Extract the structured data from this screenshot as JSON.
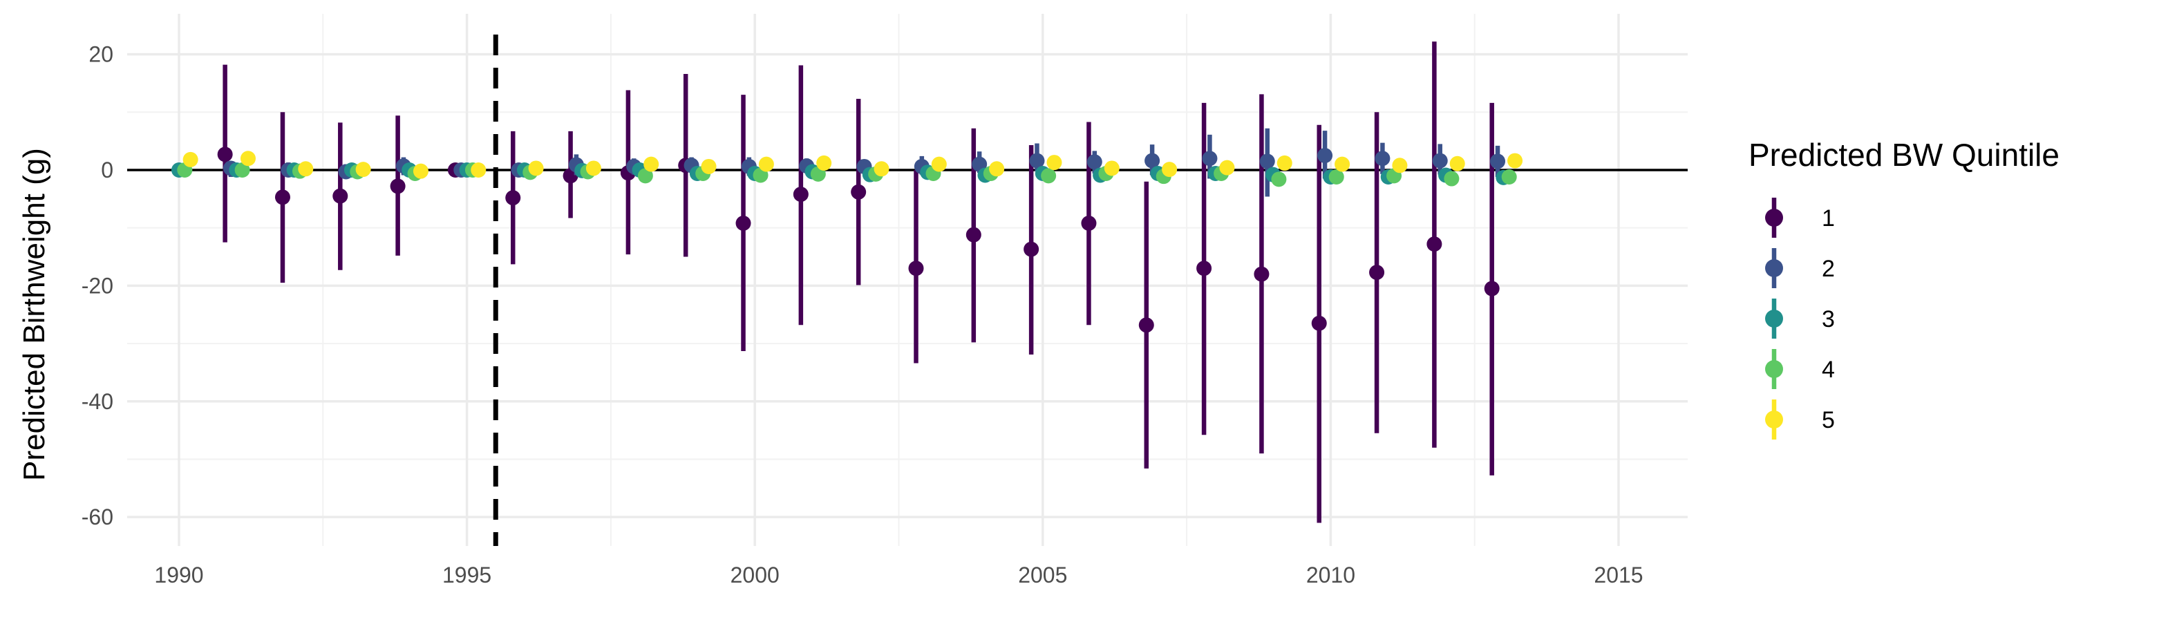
{
  "chart_data": {
    "type": "scatter",
    "subtype": "pointrange",
    "title": "",
    "xlabel": "",
    "ylabel": "Predicted Birthweight (g)",
    "xlim": [
      1989.1,
      2016.2
    ],
    "ylim": [
      -65,
      27
    ],
    "x_ticks": [
      1990,
      1995,
      2000,
      2005,
      2010,
      2015
    ],
    "x_tick_labels": [
      "1990",
      "1995",
      "2000",
      "2005",
      "2010",
      "2015"
    ],
    "y_ticks": [
      20,
      0,
      -20,
      -40,
      -60
    ],
    "y_tick_labels": [
      "20",
      "0",
      "-20",
      "-40",
      "-60"
    ],
    "grid": true,
    "reference_hline": 0,
    "reference_vline": 1995.5,
    "legend": {
      "title": "Predicted BW Quintile",
      "position": "right"
    },
    "dodge_width": 0.5,
    "series": [
      {
        "name": "1",
        "color": "#440154",
        "x": [
          1991,
          1992,
          1993,
          1994,
          1995,
          1996,
          1997,
          1998,
          1999,
          2000,
          2001,
          2002,
          2003,
          2004,
          2005,
          2006,
          2007,
          2008,
          2009,
          2010,
          2011,
          2012,
          2013
        ],
        "y": [
          2.7,
          -4.7,
          -4.5,
          -2.8,
          0,
          -4.8,
          -1,
          -0.5,
          0.8,
          -9.2,
          -4.2,
          -3.8,
          -17,
          -11.2,
          -13.7,
          -9.2,
          -26.8,
          -17,
          -18,
          -26.5,
          -17.7,
          -12.8,
          -20.5
        ],
        "lower": [
          -12.5,
          -19.5,
          -17.3,
          -14.8,
          0,
          -16.3,
          -8.3,
          -14.6,
          -15,
          -31.3,
          -26.8,
          -19.9,
          -33.4,
          -29.8,
          -31.9,
          -26.8,
          -51.6,
          -45.8,
          -49,
          -61,
          -45.5,
          -48,
          -52.8
        ],
        "upper": [
          18.2,
          10,
          8.2,
          9.4,
          0,
          6.7,
          6.7,
          13.8,
          16.6,
          13,
          18.1,
          12.3,
          0,
          7.2,
          4.3,
          8.3,
          -2,
          11.6,
          13.1,
          7.8,
          10,
          22.2,
          11.6
        ]
      },
      {
        "name": "2",
        "color": "#3B528B",
        "x": [
          1991,
          1992,
          1993,
          1994,
          1995,
          1996,
          1997,
          1998,
          1999,
          2000,
          2001,
          2002,
          2003,
          2004,
          2005,
          2006,
          2007,
          2008,
          2009,
          2010,
          2011,
          2012,
          2013
        ],
        "y": [
          0.3,
          0,
          -0.3,
          0.7,
          0,
          0,
          0.9,
          0.6,
          0.8,
          0.6,
          0.7,
          0.6,
          0.6,
          1,
          1.6,
          1.4,
          1.6,
          2,
          1.5,
          2.5,
          2,
          1.6,
          1.5
        ],
        "lower": [
          -1.2,
          -1.2,
          -1.2,
          -0.9,
          0,
          -1,
          -0.9,
          -0.8,
          -0.5,
          -1,
          -0.5,
          -0.6,
          -0.8,
          -0.5,
          -0.2,
          -0.6,
          -0.9,
          -1.5,
          -4.6,
          -1.5,
          -0.7,
          -0.8,
          -1.2
        ],
        "upper": [
          1.5,
          1.3,
          1,
          2.2,
          0,
          1.1,
          2.7,
          2,
          2.2,
          2.2,
          2,
          1.8,
          2.4,
          3.2,
          4.6,
          3.3,
          4.4,
          6.1,
          7.2,
          6.8,
          4.7,
          4.5,
          4.2
        ]
      },
      {
        "name": "3",
        "color": "#21908C",
        "x": [
          1990,
          1991,
          1992,
          1993,
          1994,
          1995,
          1996,
          1997,
          1998,
          1999,
          2000,
          2001,
          2002,
          2003,
          2004,
          2005,
          2006,
          2007,
          2008,
          2009,
          2010,
          2011,
          2012,
          2013
        ],
        "y": [
          0,
          0,
          0,
          0,
          0,
          0,
          0,
          -0.1,
          0,
          -0.6,
          -0.6,
          -0.3,
          -0.8,
          -0.4,
          -0.9,
          -0.6,
          -0.9,
          -0.6,
          -0.6,
          -0.8,
          -1.2,
          -1.2,
          -0.9,
          -1.3
        ],
        "lower": [
          -0.6,
          -0.6,
          -0.6,
          -0.6,
          -0.6,
          -0.6,
          -0.6,
          -0.8,
          -0.6,
          -1.3,
          -1.4,
          -1,
          -1.5,
          -1.1,
          -1.7,
          -1.4,
          -1.7,
          -1.4,
          -1.4,
          -1.6,
          -2,
          -2,
          -1.7,
          -2.1
        ],
        "upper": [
          0.6,
          0.6,
          0.6,
          0.6,
          0.6,
          0.6,
          0.6,
          0.6,
          0.6,
          0.1,
          0.2,
          0.4,
          -0.1,
          0.3,
          -0.1,
          0.2,
          -0.1,
          0.2,
          0.2,
          0,
          -0.4,
          -0.4,
          -0.1,
          -0.5
        ]
      },
      {
        "name": "4",
        "color": "#5DC863",
        "x": [
          1990,
          1991,
          1992,
          1993,
          1994,
          1995,
          1996,
          1997,
          1998,
          1999,
          2000,
          2001,
          2002,
          2003,
          2004,
          2005,
          2006,
          2007,
          2008,
          2009,
          2010,
          2011,
          2012,
          2013
        ],
        "y": [
          0,
          0,
          -0.2,
          -0.3,
          -0.6,
          0,
          -0.4,
          -0.3,
          -1,
          -0.6,
          -0.9,
          -0.7,
          -0.7,
          -0.6,
          -0.6,
          -1,
          -0.6,
          -1.1,
          -0.6,
          -1.6,
          -1.2,
          -1,
          -1.5,
          -1.2
        ],
        "lower": [
          -0.6,
          -0.6,
          -0.8,
          -0.9,
          -1.2,
          -0.6,
          -1,
          -0.9,
          -1.6,
          -1.3,
          -1.6,
          -1.4,
          -1.4,
          -1.3,
          -1.3,
          -1.8,
          -1.3,
          -1.8,
          -1.3,
          -2.4,
          -1.9,
          -1.7,
          -2.3,
          -1.9
        ],
        "upper": [
          0.6,
          0.6,
          0.4,
          0.3,
          0,
          0.6,
          0.2,
          0.3,
          -0.4,
          0.1,
          -0.2,
          0,
          0,
          0.1,
          0.1,
          -0.2,
          0.1,
          -0.4,
          0.1,
          -0.8,
          -0.5,
          -0.3,
          -0.7,
          -0.5
        ]
      },
      {
        "name": "5",
        "color": "#FDE725",
        "x": [
          1990,
          1991,
          1992,
          1993,
          1994,
          1995,
          1996,
          1997,
          1998,
          1999,
          2000,
          2001,
          2002,
          2003,
          2004,
          2005,
          2006,
          2007,
          2008,
          2009,
          2010,
          2011,
          2012,
          2013
        ],
        "y": [
          1.8,
          2,
          0.2,
          0.1,
          -0.2,
          0,
          0.3,
          0.3,
          1,
          0.6,
          1,
          1.2,
          0.2,
          1,
          0.2,
          1.3,
          0.3,
          0.1,
          0.4,
          1.2,
          1,
          0.8,
          1.1,
          1.6
        ],
        "lower": [
          0.7,
          0.9,
          -0.6,
          -0.6,
          -0.9,
          -0.7,
          -0.5,
          -0.5,
          0.1,
          -0.2,
          0,
          0.2,
          -0.6,
          0.1,
          -0.6,
          0.3,
          -0.5,
          -0.7,
          -0.4,
          0.2,
          0,
          -0.2,
          0.1,
          0.5
        ],
        "upper": [
          2.9,
          3.1,
          1,
          0.8,
          0.5,
          0.7,
          1.1,
          1.1,
          1.9,
          1.4,
          2,
          2.2,
          1,
          1.9,
          1,
          2.3,
          1.1,
          0.9,
          1.2,
          2.2,
          2,
          1.8,
          2.1,
          2.7
        ]
      }
    ]
  }
}
